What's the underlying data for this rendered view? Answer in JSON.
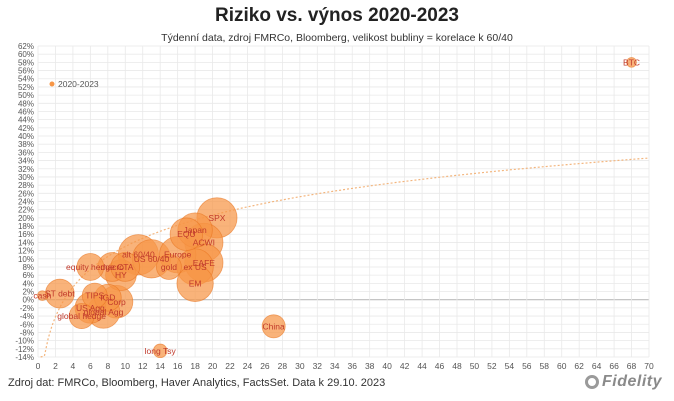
{
  "header": {
    "title": "Riziko vs. výnos 2020-2023",
    "subtitle": "Týdenní data, zdroj FMRCo, Bloomberg, velikost bubliny = korelace k 60/40"
  },
  "footer": {
    "source": "Zdroj dat: FMRCo, Bloomberg, Haver Analytics, FactsSet. Data k 29.10. 2023",
    "logo_text": "Fidelity"
  },
  "colors": {
    "bubble_fill": "#f79646",
    "bubble_stroke": "#e8731e",
    "label": "#c0392b",
    "trend": "#f3b57d",
    "grid": "#e9e9e9",
    "zero_line": "#bdbdbd"
  },
  "chart_data": {
    "type": "scatter",
    "title": "Riziko vs. výnos 2020-2023",
    "xlim": [
      0,
      70
    ],
    "ylim": [
      -14,
      62
    ],
    "x_ticks": [
      0,
      2,
      4,
      6,
      8,
      10,
      12,
      14,
      16,
      18,
      20,
      22,
      24,
      26,
      28,
      30,
      32,
      34,
      36,
      38,
      40,
      42,
      44,
      46,
      48,
      50,
      52,
      54,
      56,
      58,
      60,
      62,
      64,
      66,
      68,
      70
    ],
    "y_ticks": [
      "62%",
      "60%",
      "58%",
      "56%",
      "54%",
      "52%",
      "50%",
      "48%",
      "46%",
      "44%",
      "42%",
      "40%",
      "38%",
      "36%",
      "34%",
      "32%",
      "30%",
      "28%",
      "26%",
      "24%",
      "22%",
      "20%",
      "18%",
      "16%",
      "14%",
      "12%",
      "10%",
      "8%",
      "6%",
      "4%",
      "2%",
      "0%",
      "-2%",
      "-4%",
      "-6%",
      "-8%",
      "-10%",
      "-12%",
      "-14%"
    ],
    "grid": true,
    "legend": {
      "position": "top-left",
      "entries": [
        "2020-2023"
      ]
    },
    "trendline": "logarithmic",
    "series": [
      {
        "name": "2020-2023",
        "points": [
          {
            "label": "BTC",
            "x": 68,
            "y": 58,
            "size": 0.1
          },
          {
            "label": "SPX",
            "x": 20.5,
            "y": 20,
            "size": 0.9
          },
          {
            "label": "Japan",
            "x": 18,
            "y": 17,
            "size": 0.75
          },
          {
            "label": "EQU",
            "x": 17,
            "y": 16,
            "size": 0.7
          },
          {
            "label": "ACWI",
            "x": 19,
            "y": 14,
            "size": 0.85
          },
          {
            "label": "alt 60/40",
            "x": 11.5,
            "y": 11,
            "size": 0.9
          },
          {
            "label": "US 60/40",
            "x": 13,
            "y": 10,
            "size": 0.85
          },
          {
            "label": "Europe",
            "x": 16,
            "y": 11,
            "size": 0.8
          },
          {
            "label": "EAFE",
            "x": 19,
            "y": 9,
            "size": 0.85
          },
          {
            "label": "ex US",
            "x": 18,
            "y": 8,
            "size": 0.8
          },
          {
            "label": "gold",
            "x": 15,
            "y": 8,
            "size": 0.5
          },
          {
            "label": "macro",
            "x": 8.5,
            "y": 8,
            "size": 0.6
          },
          {
            "label": "CTA",
            "x": 10,
            "y": 8,
            "size": 0.6
          },
          {
            "label": "HY",
            "x": 9.5,
            "y": 6,
            "size": 0.65
          },
          {
            "label": "equity hedge",
            "x": 6,
            "y": 8,
            "size": 0.55
          },
          {
            "label": "EM",
            "x": 18,
            "y": 4,
            "size": 0.8
          },
          {
            "label": "cash",
            "x": 0.5,
            "y": 1,
            "size": 0.1
          },
          {
            "label": "ST debt",
            "x": 2.5,
            "y": 1.5,
            "size": 0.6
          },
          {
            "label": "TIPS",
            "x": 6.5,
            "y": 1,
            "size": 0.5
          },
          {
            "label": "IGD",
            "x": 8,
            "y": 0.5,
            "size": 0.55
          },
          {
            "label": "Corp",
            "x": 9,
            "y": -0.5,
            "size": 0.7
          },
          {
            "label": "US Agg",
            "x": 6,
            "y": -2,
            "size": 0.65
          },
          {
            "label": "global Agg",
            "x": 7.5,
            "y": -3,
            "size": 0.7
          },
          {
            "label": "global hedge",
            "x": 5,
            "y": -4,
            "size": 0.5
          },
          {
            "label": "China",
            "x": 27,
            "y": -6.5,
            "size": 0.45
          },
          {
            "label": "long Tsy",
            "x": 14,
            "y": -12.5,
            "size": 0.2
          }
        ]
      }
    ]
  }
}
